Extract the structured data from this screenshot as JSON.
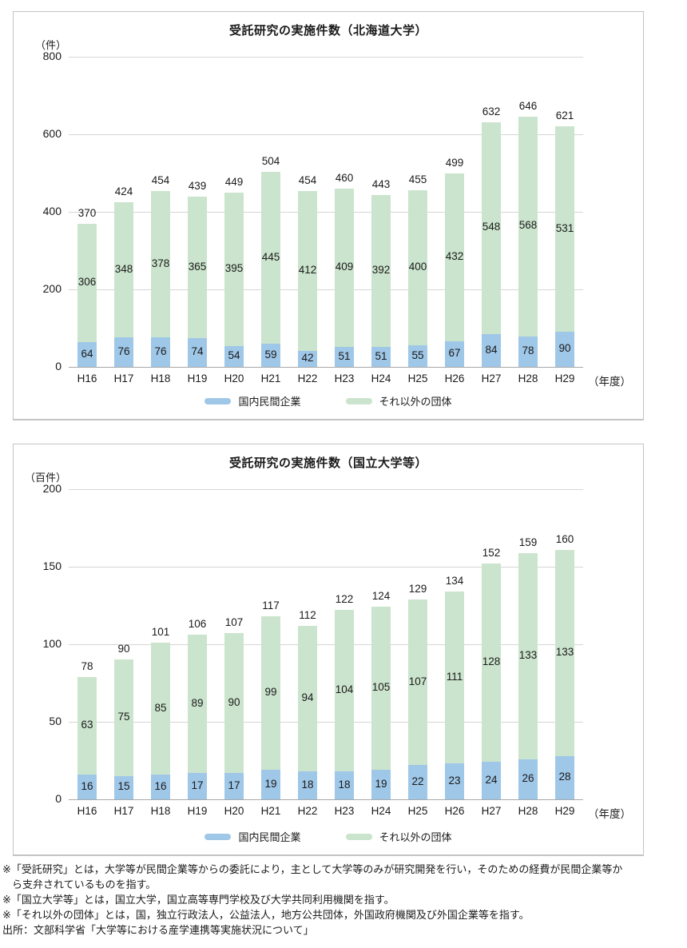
{
  "colors": {
    "grid": "#d6d6d6",
    "axis_line": "#a9a9a9",
    "panel_border": "#c4c4c4",
    "company_blue": "#9fc7e8",
    "other_green": "#cbe4cd"
  },
  "chart_data": [
    {
      "type": "bar",
      "stacked": true,
      "title": "受託研究の実施件数（北海道大学）",
      "unit": "（件）",
      "axis_suffix": "（年度）",
      "grid": true,
      "legend_position": "bottom",
      "ylim": [
        0,
        800
      ],
      "yticks": [
        800,
        600,
        400,
        200,
        0
      ],
      "categories": [
        "H16",
        "H17",
        "H18",
        "H19",
        "H20",
        "H21",
        "H22",
        "H23",
        "H24",
        "H25",
        "H26",
        "H27",
        "H28",
        "H29"
      ],
      "series": [
        {
          "name": "国内民間企業",
          "color": "#9fc7e8",
          "values": [
            64,
            76,
            76,
            74,
            54,
            59,
            42,
            51,
            51,
            55,
            67,
            84,
            78,
            90
          ]
        },
        {
          "name": "それ以外の団体",
          "color": "#cbe4cd",
          "values": [
            306,
            348,
            378,
            365,
            395,
            445,
            412,
            409,
            392,
            400,
            432,
            548,
            568,
            531
          ]
        }
      ],
      "totals": [
        370,
        424,
        454,
        439,
        449,
        504,
        454,
        460,
        443,
        455,
        499,
        632,
        646,
        621
      ]
    },
    {
      "type": "bar",
      "stacked": true,
      "title": "受託研究の実施件数（国立大学等）",
      "unit": "（百件）",
      "axis_suffix": "（年度）",
      "grid": true,
      "legend_position": "bottom",
      "ylim": [
        0,
        200
      ],
      "yticks": [
        200,
        150,
        100,
        50,
        0
      ],
      "categories": [
        "H16",
        "H17",
        "H18",
        "H19",
        "H20",
        "H21",
        "H22",
        "H23",
        "H24",
        "H25",
        "H26",
        "H27",
        "H28",
        "H29"
      ],
      "series": [
        {
          "name": "国内民間企業",
          "color": "#9fc7e8",
          "values": [
            16,
            15,
            16,
            17,
            17,
            19,
            18,
            18,
            19,
            22,
            23,
            24,
            26,
            28
          ]
        },
        {
          "name": "それ以外の団体",
          "color": "#cbe4cd",
          "values": [
            63,
            75,
            85,
            89,
            90,
            99,
            94,
            104,
            105,
            107,
            111,
            128,
            133,
            133
          ]
        }
      ],
      "totals": [
        78,
        90,
        101,
        106,
        107,
        117,
        112,
        122,
        124,
        129,
        134,
        152,
        159,
        160
      ]
    }
  ],
  "page": {
    "footer": {
      "lines": [
        "※「受託研究」とは，大学等が民間企業等からの委託により，主として大学等のみが研究開発を行い，そのための経費が民間企業等か",
        "ら支弁されているものを指す。",
        "※「国立大学等」とは，国立大学，国立高等専門学校及び大学共同利用機関を指す。",
        "※「それ以外の団体」とは，国，独立行政法人，公益法人，地方公共団体，外国政府機関及び外国企業等を指す。",
        "出所：文部科学省「大学等における産学連携等実施状況について」"
      ]
    }
  }
}
